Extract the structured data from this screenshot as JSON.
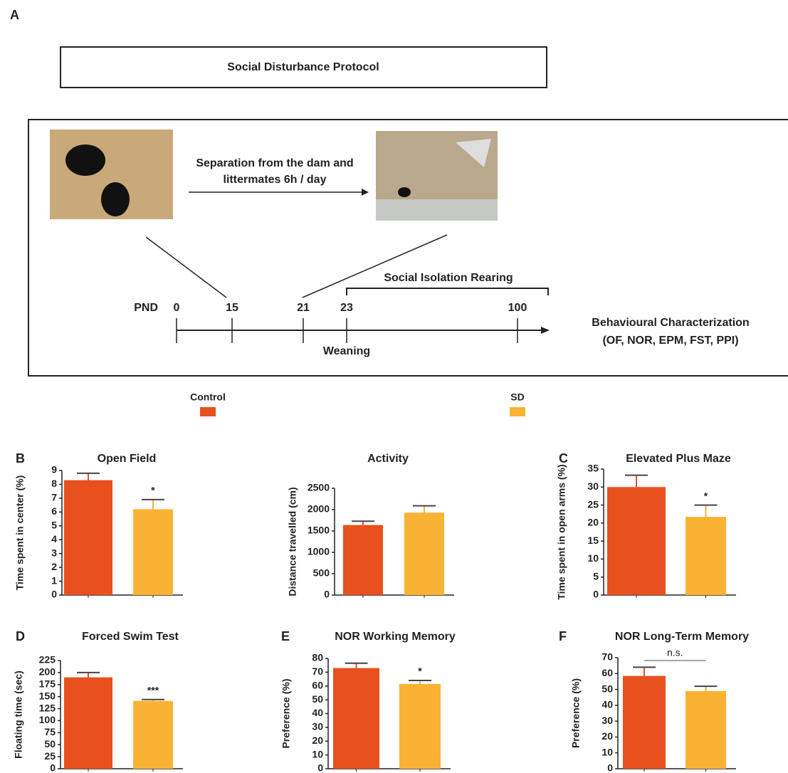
{
  "diagram": {
    "panel": "A",
    "protocol_title": "Social Disturbance Protocol",
    "arrow_label": [
      "Separation from the dam and",
      "littermates 6h / day"
    ],
    "timeline_label": "PND",
    "days": [
      0,
      15,
      21,
      23,
      100
    ],
    "isolation": "Social Isolation Rearing",
    "weaning": "Weaning",
    "outcome": [
      "Behavioural Characterization",
      "(OF, NOR, EPM, FST, PPI)"
    ]
  },
  "legend": [
    {
      "name": "Control",
      "color": "#e8501e"
    },
    {
      "name": "SD",
      "color": "#f9b233"
    }
  ],
  "chart_data": [
    {
      "type": "bar",
      "panel": "B",
      "title": "Open Field",
      "y_label": "Time spent in center (%)",
      "values": [
        8.3,
        6.2
      ],
      "errors": [
        0.5,
        0.7
      ],
      "value_annotations": [
        null,
        "*"
      ],
      "ylim": [
        0,
        9
      ],
      "yticks": [
        0,
        1,
        2,
        3,
        4,
        5,
        6,
        7,
        8,
        9
      ]
    },
    {
      "type": "bar",
      "title": "Activity",
      "y_label": "Distance travelled (cm)",
      "values": [
        1640,
        1930
      ],
      "errors": [
        90,
        160
      ],
      "ylim": [
        0,
        2500
      ],
      "yticks": [
        0,
        500,
        1000,
        1500,
        2000,
        2500
      ]
    },
    {
      "type": "bar",
      "panel": "C",
      "title": "Elevated Plus Maze",
      "y_label": "Time spent in open arms (%)",
      "values": [
        30,
        21.7
      ],
      "errors": [
        3.3,
        3.3
      ],
      "value_annotations": [
        null,
        "*"
      ],
      "ylim": [
        0,
        35
      ],
      "yticks": [
        0,
        5,
        10,
        15,
        20,
        25,
        30,
        35
      ]
    },
    {
      "type": "bar",
      "panel": "D",
      "title": "Forced Swim Test",
      "y_label": "Floating time (sec)",
      "values": [
        190,
        141
      ],
      "errors": [
        10,
        3
      ],
      "value_annotations": [
        null,
        "***"
      ],
      "ylim": [
        0,
        225
      ],
      "yticks": [
        0,
        25,
        50,
        75,
        100,
        125,
        150,
        175,
        200,
        225
      ]
    },
    {
      "type": "bar",
      "panel": "E",
      "title": "NOR Working Memory",
      "y_label": "Preference (%)",
      "values": [
        73,
        61.5
      ],
      "errors": [
        3.5,
        2.5
      ],
      "value_annotations": [
        null,
        "*"
      ],
      "ylim": [
        0,
        80
      ],
      "yticks": [
        0,
        10,
        20,
        30,
        40,
        50,
        60,
        70,
        80
      ]
    },
    {
      "type": "bar",
      "panel": "F",
      "title": "NOR Long-Term Memory",
      "y_label": "Preference (%)",
      "values": [
        58.5,
        49
      ],
      "errors": [
        5.5,
        3
      ],
      "comparison": "n.s.",
      "ylim": [
        0,
        70
      ],
      "yticks": [
        0,
        10,
        20,
        30,
        40,
        50,
        60,
        70
      ]
    }
  ]
}
